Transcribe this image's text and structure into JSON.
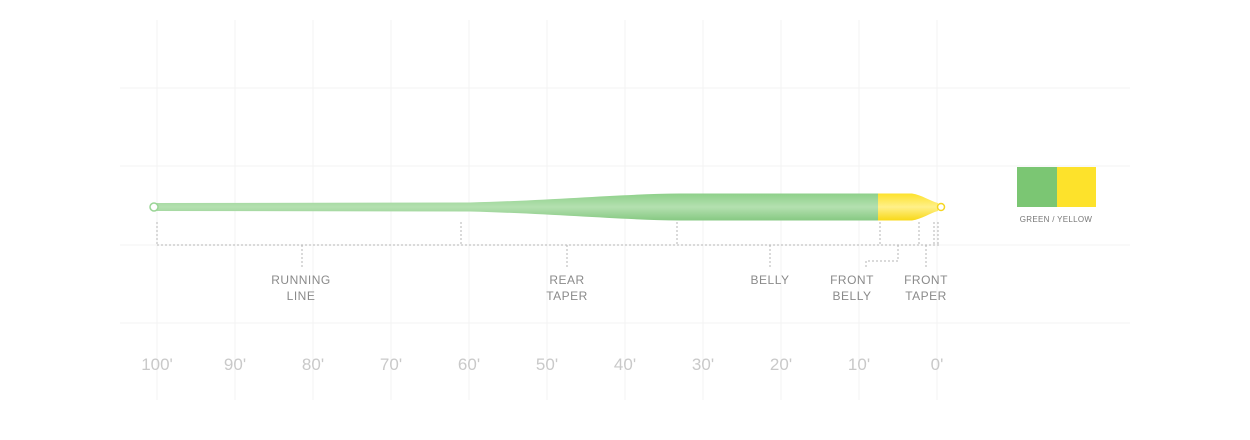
{
  "segments": [
    {
      "lines": [
        "RUNNING",
        "LINE"
      ]
    },
    {
      "lines": [
        "REAR",
        "TAPER"
      ]
    },
    {
      "lines": [
        "BELLY"
      ]
    },
    {
      "lines": [
        "FRONT",
        "BELLY"
      ]
    },
    {
      "lines": [
        "FRONT",
        "TAPER"
      ]
    }
  ],
  "axis": {
    "labels": [
      "100'",
      "90'",
      "80'",
      "70'",
      "60'",
      "50'",
      "40'",
      "30'",
      "20'",
      "10'",
      "0'"
    ]
  },
  "legend": {
    "label": "GREEN / YELLOW"
  }
}
